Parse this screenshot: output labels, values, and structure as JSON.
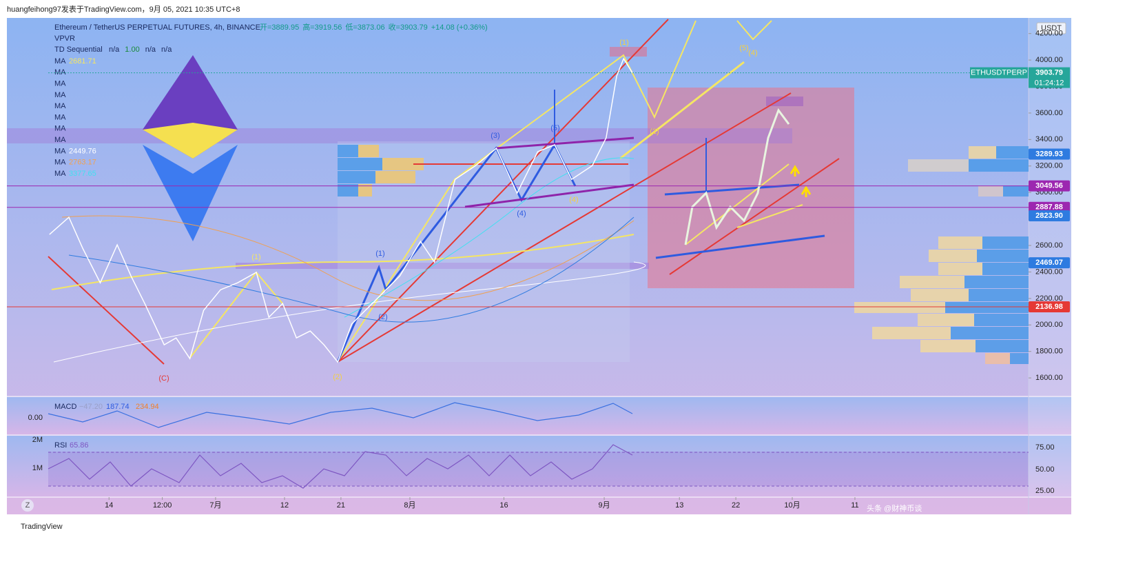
{
  "header": {
    "attribution": "huangfeihong97发表于TradingView.com，9月 05, 2021 10:35 UTC+8",
    "symbol": "Ethereum / TetherUS PERPETUAL FUTURES, 4h, BINANCE",
    "ohlc": [
      "开=3889.95",
      "高=3919.56",
      "低=3873.06",
      "收=3903.79",
      "+14.08 (+0.36%)"
    ],
    "indicators": [
      "VPVR"
    ],
    "td": {
      "name": "TD Sequential",
      "values": [
        "n/a",
        "1.00",
        "n/a",
        "n/a"
      ]
    },
    "ma": [
      {
        "name": "MA",
        "value": "2681.71",
        "color": "#f5e663"
      },
      {
        "name": "MA"
      },
      {
        "name": "MA"
      },
      {
        "name": "MA"
      },
      {
        "name": "MA"
      },
      {
        "name": "MA"
      },
      {
        "name": "MA"
      },
      {
        "name": "MA"
      },
      {
        "name": "MA",
        "value": "2449.76",
        "color": "#ffffff"
      },
      {
        "name": "MA",
        "value": "2763.17",
        "color": "#f0a050"
      },
      {
        "name": "MA",
        "value": "3377.65",
        "color": "#40e0f0"
      }
    ]
  },
  "chart_data": {
    "type": "line",
    "currency": "USDT",
    "color": "#ffffff",
    "x": [
      155.5,
      158.6,
      160.8,
      163.6,
      166.3,
      168.5,
      170.7,
      173.8,
      175.7,
      177.9,
      180.1,
      182.8,
      185.5,
      188.5,
      190.5,
      192.7,
      194.9,
      197.1,
      199.3,
      201.5,
      203.7,
      205.9,
      208.1,
      211.4,
      214.7,
      216.9,
      220.2,
      223.5,
      226.8,
      230.1,
      233.4,
      236.1,
      238.8,
      242.1,
      244.3,
      246.0,
      247.1,
      248.5
    ],
    "values": [
      2683,
      2813,
      2579,
      2318,
      2605,
      2370,
      2162,
      1850,
      1902,
      1746,
      2110,
      2266,
      2318,
      2397,
      2058,
      2162,
      1902,
      1954,
      1850,
      1720,
      2006,
      2110,
      2214,
      2370,
      2631,
      2475,
      3099,
      3203,
      3334,
      2995,
      3308,
      3360,
      3099,
      3203,
      3412,
      3880,
      4010,
      3903.79
    ],
    "xlim": [
      155.3,
      311.7
    ],
    "ylim": [
      1460,
      4318
    ],
    "xticks": [
      {
        "value": 165,
        "label": "14"
      },
      {
        "value": 173.5,
        "label": "12:00"
      },
      {
        "value": 182,
        "label": "7月"
      },
      {
        "value": 193,
        "label": "12"
      },
      {
        "value": 202,
        "label": "21"
      },
      {
        "value": 213,
        "label": "8月"
      },
      {
        "value": 228,
        "label": "16"
      },
      {
        "value": 244,
        "label": "9月"
      },
      {
        "value": 256,
        "label": "13"
      },
      {
        "value": 265,
        "label": "22"
      },
      {
        "value": 274,
        "label": "10月"
      },
      {
        "value": 284,
        "label": "11"
      }
    ],
    "yticks": [
      {
        "value": 1600,
        "label": "1600.00"
      },
      {
        "value": 1800,
        "label": "1800.00"
      },
      {
        "value": 2000,
        "label": "2000.00"
      },
      {
        "value": 2200,
        "label": "2200.00"
      },
      {
        "value": 2400,
        "label": "2400.00"
      },
      {
        "value": 2600,
        "label": "2600.00"
      },
      {
        "value": 2800,
        "label": "2800.00"
      },
      {
        "value": 3000,
        "label": "3000.00"
      },
      {
        "value": 3200,
        "label": "3200.00"
      },
      {
        "value": 3400,
        "label": "3400.00"
      },
      {
        "value": 3600,
        "label": "3600.00"
      },
      {
        "value": 3800,
        "label": "3800.00"
      },
      {
        "value": 4000,
        "label": "4000.00"
      },
      {
        "value": 4200,
        "label": "4200.00"
      }
    ],
    "last_price": {
      "symbol": "ETHUSDTPERP",
      "value": 3903.79,
      "countdown": "01:24:12",
      "color": "#26a69a"
    },
    "price_lines": [
      {
        "value": 3289.93,
        "color": "#2e7be0",
        "line": false
      },
      {
        "value": 3049.56,
        "color": "#9c27b0",
        "line": true
      },
      {
        "value": 2887.88,
        "color": "#9c27b0",
        "line": true
      },
      {
        "value": 2823.9,
        "label": "2823.90",
        "color": "#2e7be0",
        "line": false
      },
      {
        "value": 2469.07,
        "color": "#2e7be0",
        "line": false
      },
      {
        "value": 2136.98,
        "color": "#e53935",
        "line": true
      }
    ],
    "annotations": [
      {
        "text": "(C)",
        "color": "#e53935"
      },
      {
        "text": "(1)",
        "color": "#f5e663"
      },
      {
        "text": "(2)",
        "color": "#f5d040"
      },
      {
        "text": "(1)",
        "color": "#2e5be0"
      },
      {
        "text": "(2)",
        "color": "#2e5be0"
      },
      {
        "text": "(3)",
        "color": "#2e5be0"
      },
      {
        "text": "(4)",
        "color": "#2e5be0"
      },
      {
        "text": "(5)",
        "color": "#2e5be0"
      },
      {
        "text": "(4)",
        "color": "#f5d040"
      },
      {
        "text": "(1)",
        "color": "#f5d040"
      },
      {
        "text": "(2)",
        "color": "#f5d040"
      },
      {
        "text": "(5)",
        "color": "#f5d040"
      },
      {
        "text": "(4)",
        "color": "#f5d040"
      }
    ]
  },
  "macd": {
    "name": "MACD",
    "values": [
      "−47.20",
      "187.74",
      "234.94"
    ],
    "zero": "0.00"
  },
  "rsi": {
    "name": "RSI",
    "value": "65.86",
    "ticks": [
      "75.00",
      "50.00",
      "25.00"
    ],
    "volume_ticks": [
      "2M",
      "1M"
    ]
  },
  "footer": {
    "zoom": "Z",
    "brand": "TradingView",
    "watermark": "头条 @财神币谈"
  }
}
